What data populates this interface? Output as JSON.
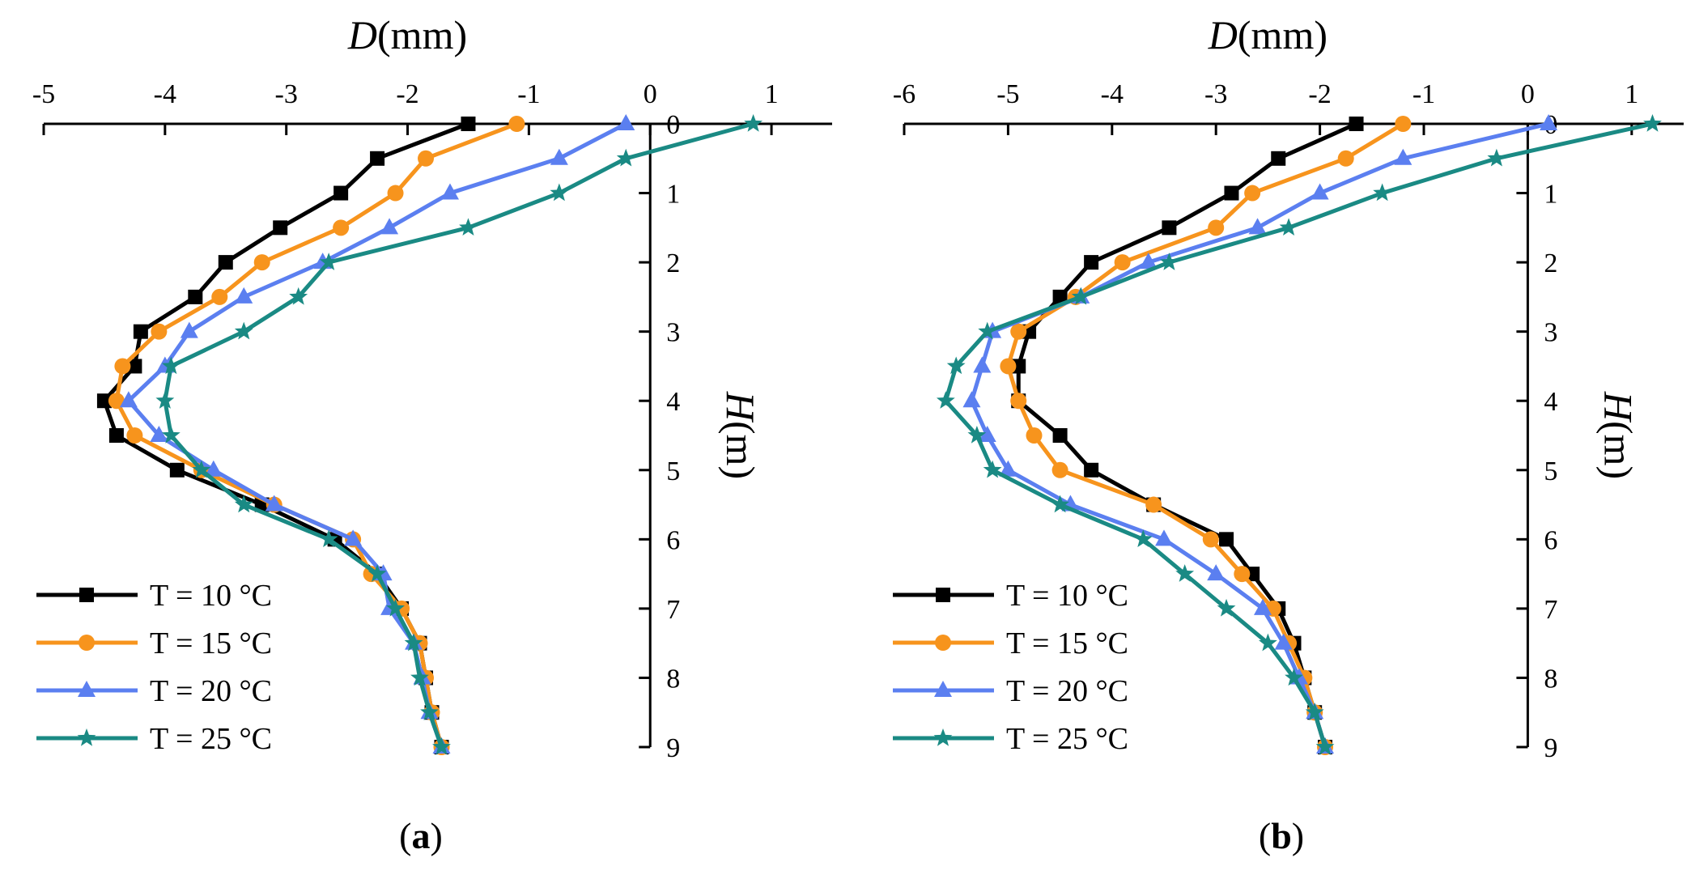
{
  "chart_data": [
    {
      "type": "line",
      "panel_label": "a",
      "xlabel": "D",
      "xlabel_unit": "(mm)",
      "ylabel": "H",
      "ylabel_unit": "(m)",
      "xlim": [
        -5,
        1.5
      ],
      "ylim": [
        0,
        9
      ],
      "xticks": [
        -5,
        -4,
        -3,
        -2,
        -1,
        0,
        1
      ],
      "yticks": [
        0,
        1,
        2,
        3,
        4,
        5,
        6,
        7,
        8,
        9
      ],
      "legend_position": "bottom-left",
      "series": [
        {
          "name": "T = 10 °C",
          "color": "#000000",
          "marker": "square",
          "x": [
            -1.5,
            -2.25,
            -2.55,
            -3.05,
            -3.5,
            -3.75,
            -4.2,
            -4.25,
            -4.5,
            -4.4,
            -3.9,
            -3.2,
            -2.6,
            -2.25,
            -2.05,
            -1.9,
            -1.85,
            -1.8,
            -1.72
          ],
          "y": [
            0,
            0.5,
            1,
            1.5,
            2,
            2.5,
            3,
            3.5,
            4,
            4.5,
            5,
            5.5,
            6,
            6.5,
            7,
            7.5,
            8,
            8.5,
            9
          ]
        },
        {
          "name": "T = 15 °C",
          "color": "#f7941d",
          "marker": "circle",
          "x": [
            -1.1,
            -1.85,
            -2.1,
            -2.55,
            -3.2,
            -3.55,
            -4.05,
            -4.35,
            -4.4,
            -4.25,
            -3.7,
            -3.1,
            -2.45,
            -2.3,
            -2.05,
            -1.9,
            -1.85,
            -1.8,
            -1.72
          ],
          "y": [
            0,
            0.5,
            1,
            1.5,
            2,
            2.5,
            3,
            3.5,
            4,
            4.5,
            5,
            5.5,
            6,
            6.5,
            7,
            7.5,
            8,
            8.5,
            9
          ]
        },
        {
          "name": "T = 20 °C",
          "color": "#5b7ff0",
          "marker": "triangle",
          "x": [
            -0.2,
            -0.75,
            -1.65,
            -2.15,
            -2.7,
            -3.35,
            -3.8,
            -4.0,
            -4.3,
            -4.05,
            -3.6,
            -3.1,
            -2.45,
            -2.2,
            -2.15,
            -1.95,
            -1.88,
            -1.82,
            -1.72
          ],
          "y": [
            0,
            0.5,
            1,
            1.5,
            2,
            2.5,
            3,
            3.5,
            4,
            4.5,
            5,
            5.5,
            6,
            6.5,
            7,
            7.5,
            8,
            8.5,
            9
          ]
        },
        {
          "name": "T = 25 °C",
          "color": "#1a8a84",
          "marker": "star",
          "x": [
            0.85,
            -0.2,
            -0.75,
            -1.5,
            -2.65,
            -2.9,
            -3.35,
            -3.95,
            -4.0,
            -3.95,
            -3.7,
            -3.35,
            -2.65,
            -2.25,
            -2.1,
            -1.95,
            -1.9,
            -1.82,
            -1.72
          ],
          "y": [
            0,
            0.5,
            1,
            1.5,
            2,
            2.5,
            3,
            3.5,
            4,
            4.5,
            5,
            5.5,
            6,
            6.5,
            7,
            7.5,
            8,
            8.5,
            9
          ]
        }
      ]
    },
    {
      "type": "line",
      "panel_label": "b",
      "xlabel": "D",
      "xlabel_unit": "(mm)",
      "ylabel": "H",
      "ylabel_unit": "(m)",
      "xlim": [
        -6,
        1.5
      ],
      "ylim": [
        0,
        9
      ],
      "xticks": [
        -6,
        -5,
        -4,
        -3,
        -2,
        -1,
        0,
        1
      ],
      "yticks": [
        0,
        1,
        2,
        3,
        4,
        5,
        6,
        7,
        8,
        9
      ],
      "legend_position": "bottom-left",
      "series": [
        {
          "name": "T = 10 °C",
          "color": "#000000",
          "marker": "square",
          "x": [
            -1.65,
            -2.4,
            -2.85,
            -3.45,
            -4.2,
            -4.5,
            -4.8,
            -4.9,
            -4.9,
            -4.5,
            -4.2,
            -3.6,
            -2.9,
            -2.65,
            -2.4,
            -2.25,
            -2.15,
            -2.05,
            -1.95
          ],
          "y": [
            0,
            0.5,
            1,
            1.5,
            2,
            2.5,
            3,
            3.5,
            4,
            4.5,
            5,
            5.5,
            6,
            6.5,
            7,
            7.5,
            8,
            8.5,
            9
          ]
        },
        {
          "name": "T = 15 °C",
          "color": "#f7941d",
          "marker": "circle",
          "x": [
            -1.2,
            -1.75,
            -2.65,
            -3.0,
            -3.9,
            -4.35,
            -4.9,
            -5.0,
            -4.9,
            -4.75,
            -4.5,
            -3.6,
            -3.05,
            -2.75,
            -2.45,
            -2.3,
            -2.15,
            -2.05,
            -1.95
          ],
          "y": [
            0,
            0.5,
            1,
            1.5,
            2,
            2.5,
            3,
            3.5,
            4,
            4.5,
            5,
            5.5,
            6,
            6.5,
            7,
            7.5,
            8,
            8.5,
            9
          ]
        },
        {
          "name": "T = 20 °C",
          "color": "#5b7ff0",
          "marker": "triangle",
          "x": [
            0.2,
            -1.2,
            -2.0,
            -2.6,
            -3.65,
            -4.3,
            -5.15,
            -5.25,
            -5.35,
            -5.2,
            -5.0,
            -4.4,
            -3.5,
            -3.0,
            -2.55,
            -2.35,
            -2.2,
            -2.05,
            -1.95
          ],
          "y": [
            0,
            0.5,
            1,
            1.5,
            2,
            2.5,
            3,
            3.5,
            4,
            4.5,
            5,
            5.5,
            6,
            6.5,
            7,
            7.5,
            8,
            8.5,
            9
          ]
        },
        {
          "name": "T = 25 °C",
          "color": "#1a8a84",
          "marker": "star",
          "x": [
            1.2,
            -0.3,
            -1.4,
            -2.3,
            -3.45,
            -4.3,
            -5.2,
            -5.5,
            -5.6,
            -5.3,
            -5.15,
            -4.5,
            -3.7,
            -3.3,
            -2.9,
            -2.5,
            -2.25,
            -2.05,
            -1.95
          ],
          "y": [
            0,
            0.5,
            1,
            1.5,
            2,
            2.5,
            3,
            3.5,
            4,
            4.5,
            5,
            5.5,
            6,
            6.5,
            7,
            7.5,
            8,
            8.5,
            9
          ]
        }
      ]
    }
  ]
}
